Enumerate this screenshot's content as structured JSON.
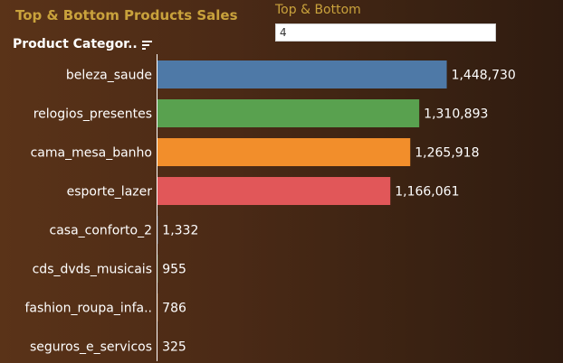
{
  "header": {
    "title": "Top & Bottom Products Sales",
    "parameter_label": "Top & Bottom",
    "parameter_value": "4",
    "column_header": "Product Categor.."
  },
  "colors": {
    "bg_left": "#5a3318",
    "bg_right": "#2f1b10",
    "title": "#c9a23c",
    "bar_1": "#4e79a7",
    "bar_2": "#59a14f",
    "bar_3": "#f28e2b",
    "bar_4": "#e15759",
    "text": "#ffffff"
  },
  "icons": {
    "sort": "sort-descending-icon"
  },
  "chart_data": {
    "type": "bar",
    "orientation": "horizontal",
    "categories": [
      "beleza_saude",
      "relogios_presentes",
      "cama_mesa_banho",
      "esporte_lazer",
      "casa_conforto_2",
      "cds_dvds_musicais",
      "fashion_roupa_infa..",
      "seguros_e_servicos"
    ],
    "values": [
      1448730,
      1310893,
      1265918,
      1166061,
      1332,
      955,
      786,
      325
    ],
    "value_labels": [
      "1,448,730",
      "1,310,893",
      "1,265,918",
      "1,166,061",
      "1,332",
      "955",
      "786",
      "325"
    ],
    "bar_colors": [
      "#4e79a7",
      "#59a14f",
      "#f28e2b",
      "#e15759",
      "#4e79a7",
      "#59a14f",
      "#f28e2b",
      "#e15759"
    ],
    "xlim": [
      0,
      1700000
    ],
    "title": "Top & Bottom Products Sales",
    "xlabel": "",
    "ylabel": "Product Categor..",
    "grid": false,
    "legend": "none"
  }
}
